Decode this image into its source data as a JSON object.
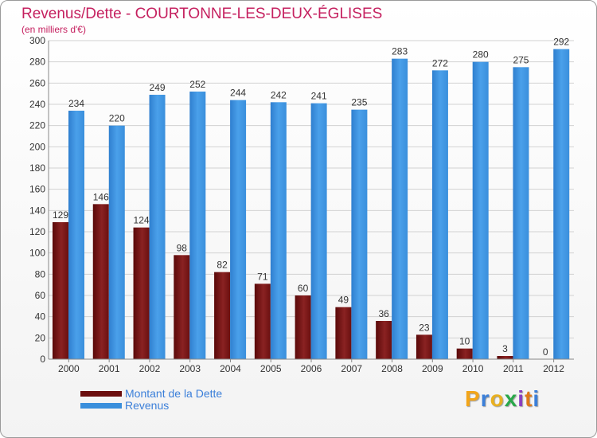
{
  "header": {
    "title": "Revenus/Dette - COURTONNE-LES-DEUX-ÉGLISES",
    "subtitle": "(en milliers d'€)"
  },
  "colors": {
    "title": "#c5205f",
    "dette": "#7a1a1a",
    "revenus": "#3a8fdc",
    "grid": "#d0d0d0"
  },
  "legend": {
    "items": [
      {
        "label": "Montant de la Dette",
        "color": "#6b0e0e"
      },
      {
        "label": "Revenus",
        "color": "#3a8fdc"
      }
    ]
  },
  "brand": {
    "text": "Proxiti",
    "icon": "proxiti-logo"
  },
  "chart_data": {
    "type": "bar",
    "categories": [
      "2000",
      "2001",
      "2002",
      "2003",
      "2004",
      "2005",
      "2006",
      "2007",
      "2008",
      "2009",
      "2010",
      "2011",
      "2012"
    ],
    "series": [
      {
        "name": "Montant de la Dette",
        "values": [
          129,
          146,
          124,
          98,
          82,
          71,
          60,
          49,
          36,
          23,
          10,
          3,
          0
        ]
      },
      {
        "name": "Revenus",
        "values": [
          234,
          220,
          249,
          252,
          244,
          242,
          241,
          235,
          283,
          272,
          280,
          275,
          292
        ]
      }
    ],
    "ylim": [
      0,
      300
    ],
    "yticks": [
      0,
      20,
      40,
      60,
      80,
      100,
      120,
      140,
      160,
      180,
      200,
      220,
      240,
      260,
      280,
      300
    ],
    "grid": true,
    "legend_position": "bottom-left",
    "data_labels": true
  }
}
